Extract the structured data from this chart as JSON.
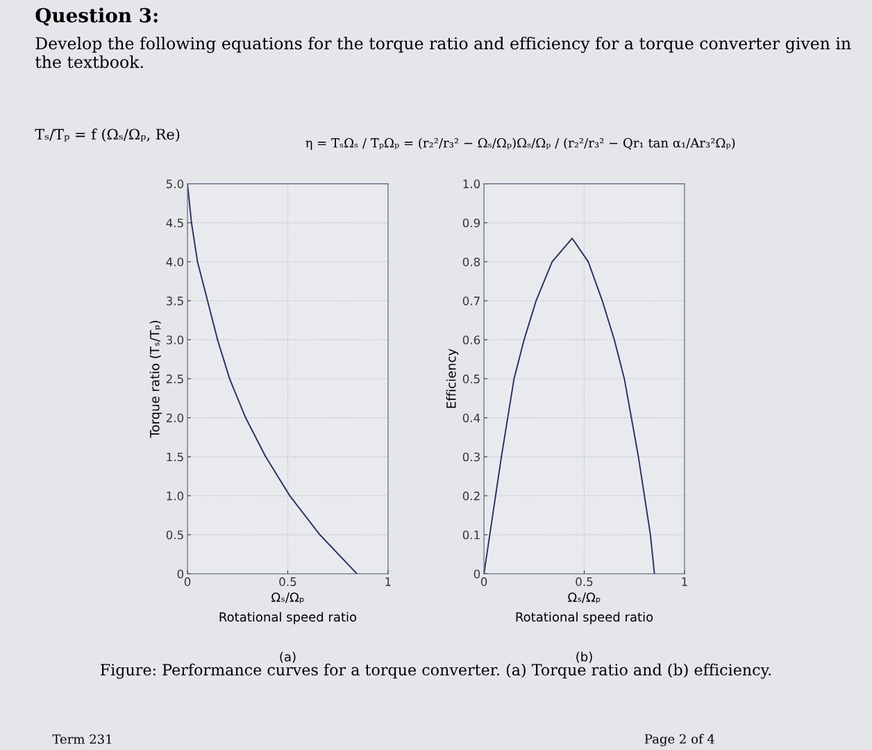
{
  "chart_data": [
    {
      "type": "line",
      "xlabel": "Ωₛ/Ωₚ\nRotational speed ratio",
      "ylabel": "Torque ratio (Tₛ/Tₚ)",
      "subtitle": "(a)",
      "annotations": [
        "Question 3:",
        "Develop the following equations for the torque ratio and efficiency for a torque converter given in the textbook.",
        "Tₛ/Tₚ = f (Ωₛ/Ωₚ, Re)",
        "Term 231"
      ],
      "series": [
        {
          "color": "#2e3060",
          "x": [
            0,
            0.02,
            0.05,
            0.1,
            0.15,
            0.21,
            0.29,
            0.39,
            0.51,
            0.66,
            0.845
          ],
          "values": [
            5.0,
            4.5,
            4.0,
            3.5,
            3.0,
            2.5,
            2.0,
            1.5,
            1.0,
            0.5,
            0
          ]
        }
      ],
      "xlim": [
        0,
        1
      ],
      "xticks": [
        0,
        0.5,
        1
      ],
      "ylim": [
        0,
        5
      ],
      "yticks": [
        0,
        {
          "value": 0.5,
          "label": "0.5"
        },
        {
          "value": 1,
          "label": "1.0"
        },
        {
          "value": 1.5,
          "label": "1.5"
        },
        {
          "value": 2,
          "label": "2.0"
        },
        {
          "value": 2.5,
          "label": "2.5"
        },
        {
          "value": 3,
          "label": "3.0"
        },
        {
          "value": 3.5,
          "label": "3.5"
        },
        {
          "value": 4,
          "label": "4.0"
        },
        {
          "value": 4.5,
          "label": "4.5"
        },
        {
          "value": 5,
          "label": "5.0"
        }
      ],
      "grid": true
    },
    {
      "type": "line",
      "xlabel": "Ωₛ/Ωₚ\nRotational speed ratio",
      "ylabel": "Efficiency",
      "subtitle": "(b)",
      "annotations": [
        "η = TₛΩₛ / TₚΩₚ = (r₂²/r₃² − Ωₛ/Ωₚ)Ωₛ/Ωₚ / (r₂²/r₃² − Qr₁ tan α₁/Ar₃²Ωₚ)",
        "Figure: Performance curves for a torque converter. (a) Torque ratio and (b) efficiency.",
        "Page 2 of 4"
      ],
      "series": [
        {
          "color": "#2e3060",
          "x": [
            0,
            0.087,
            0.15,
            0.2,
            0.26,
            0.34,
            0.44,
            0.52,
            0.59,
            0.65,
            0.7,
            0.77,
            0.83,
            0.85
          ],
          "values": [
            0,
            0.3,
            0.5,
            0.6,
            0.7,
            0.8,
            0.86,
            0.8,
            0.7,
            0.6,
            0.5,
            0.3,
            0.1,
            0
          ]
        }
      ],
      "xlim": [
        0,
        1
      ],
      "xticks": [
        0,
        0.5,
        1
      ],
      "ylim": [
        0,
        1
      ],
      "yticks": [
        0,
        0.1,
        0.2,
        0.3,
        0.4,
        0.5,
        0.6,
        0.7,
        0.8,
        0.9,
        {
          "value": 1,
          "label": "1.0"
        }
      ],
      "grid": true
    }
  ]
}
